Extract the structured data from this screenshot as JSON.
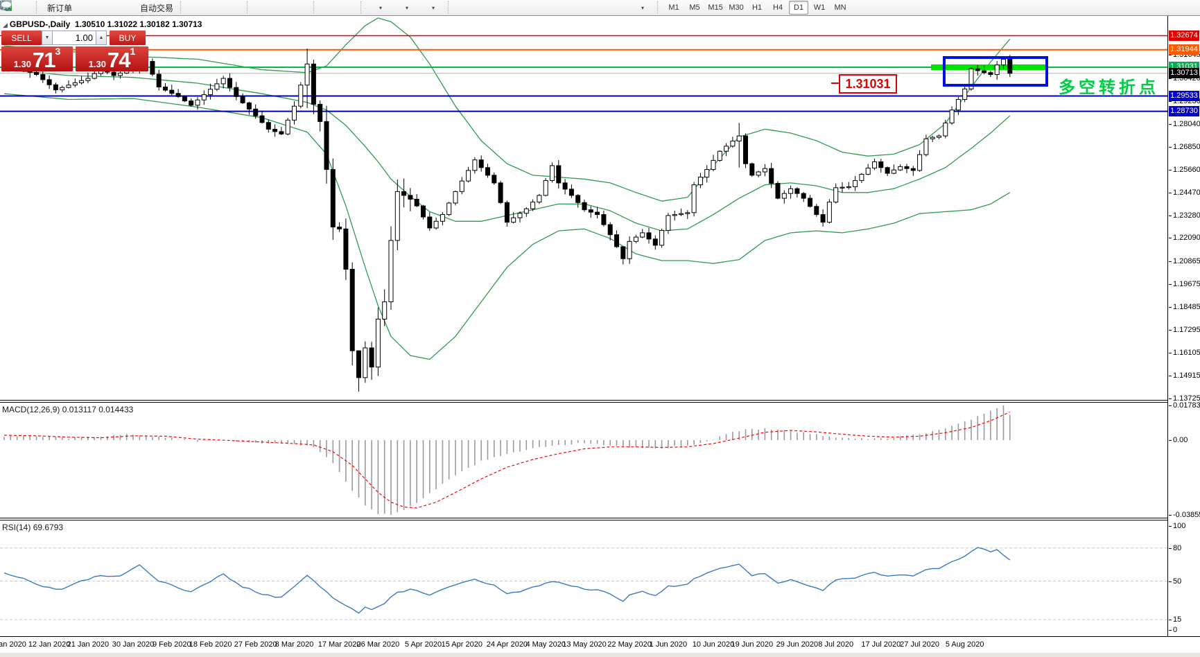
{
  "toolbar": {
    "new_order_label": "新订单",
    "autotrading_label": "自动交易",
    "timeframes": [
      "M1",
      "M5",
      "M15",
      "M30",
      "H1",
      "H4",
      "D1",
      "W1",
      "MN"
    ],
    "active_timeframe": "D1",
    "icons": {
      "chart-window": "bordered-window-shape",
      "market-watch": "window-with-magnifier",
      "new-order": "document-with-green-plus",
      "metaeditor": "gold-diamond",
      "navigator": "blue-panel",
      "signal": "green-antenna-circle",
      "autotrading": "gold-badge-red-dot",
      "bar-chart": "ohlc-bars",
      "candle-chart": "candlestick",
      "line-chart": "zigzag-line",
      "zoom-in": "magnifier-plus",
      "zoom-out": "magnifier-minus",
      "tile-windows": "green-blue-squares",
      "auto-scroll": "axis-green-play",
      "chart-shift": "axis-red-arrow",
      "indicators": "chart-green-plus-dropdown",
      "periods": "blue-clock-dropdown",
      "templates": "chart-lines-dropdown",
      "cursor": "arrow-pointer",
      "crosshair": "thin-cross",
      "vertical-line": "|",
      "horizontal-line": "—",
      "trendline": "/",
      "channel": "hatched-E",
      "fibonacci": "dotted-F",
      "text": "A",
      "text-label": "dashed-T",
      "arrows": "arrow-shapes-dropdown",
      "search": "blue-magnifier",
      "chat": "speech-bubble"
    }
  },
  "chart": {
    "title": "GBPUSD-,Daily",
    "ohlc": "1.30510 1.31022 1.30182 1.30713"
  },
  "one_click": {
    "sell_label": "SELL",
    "buy_label": "BUY",
    "volume": "1.00",
    "sell_price": {
      "prefix": "1.30",
      "pips": "71",
      "pt": "3"
    },
    "buy_price": {
      "prefix": "1.30",
      "pips": "74",
      "pt": "1"
    }
  },
  "annotations": {
    "level_label": "1.31031",
    "note": "多空转折点",
    "highlight_bar_color": "#00e200",
    "box_color": "#0010dd"
  },
  "macd_panel": {
    "name": "MACD(12,26,9)",
    "value1": "0.013117",
    "value2": "0.014433",
    "axis": [
      [
        0.017833,
        "0.017833"
      ],
      [
        0,
        "0.00"
      ],
      [
        -0.038559,
        "-0.038559"
      ]
    ]
  },
  "rsi_panel": {
    "name": "RSI(14)",
    "value": "69.6793",
    "axis": [
      [
        100,
        "100"
      ],
      [
        80,
        "80"
      ],
      [
        50,
        "50"
      ],
      [
        15,
        "15"
      ],
      [
        0,
        "0"
      ]
    ],
    "dashed_levels": [
      80,
      50,
      15
    ]
  },
  "chart_data": {
    "type": "candlestick",
    "symbol": "GBPUSD",
    "timeframe": "Daily",
    "n_candles": 157,
    "y_axis_ticks": [
      1.31645,
      1.3042,
      1.2923,
      1.2804,
      1.2685,
      1.2566,
      1.2447,
      1.2328,
      1.2209,
      1.20865,
      1.19675,
      1.18485,
      1.17295,
      1.16105,
      1.14915,
      1.13725
    ],
    "price_badges": [
      {
        "price": 1.32674,
        "color": "#e00000"
      },
      {
        "price": 1.31944,
        "color": "#ff5a00"
      },
      {
        "price": 1.31031,
        "color": "#00b050"
      },
      {
        "price": 1.30713,
        "color": "#000000"
      },
      {
        "price": 1.29533,
        "color": "#0000cc"
      },
      {
        "price": 1.2873,
        "color": "#0000cc"
      }
    ],
    "level_lines": [
      {
        "price": 1.32674,
        "color": "#e00000",
        "w": 1.5
      },
      {
        "price": 1.31944,
        "color": "#ff5a00",
        "w": 2
      },
      {
        "price": 1.31031,
        "color": "#00bb44",
        "w": 2
      },
      {
        "price": 1.30713,
        "color": "#b4b4b4",
        "w": 1
      },
      {
        "price": 1.29533,
        "color": "#0000bb",
        "w": 2
      },
      {
        "price": 1.2873,
        "color": "#0000bb",
        "w": 2
      }
    ],
    "x_labels": [
      {
        "i": 1,
        "t": "Jan 2020"
      },
      {
        "i": 7,
        "t": "12 Jan 2020"
      },
      {
        "i": 13,
        "t": "21 Jan 2020"
      },
      {
        "i": 20,
        "t": "30 Jan 2020"
      },
      {
        "i": 26,
        "t": "9 Feb 2020"
      },
      {
        "i": 32,
        "t": "18 Feb 2020"
      },
      {
        "i": 39,
        "t": "27 Feb 2020"
      },
      {
        "i": 45,
        "t": "8 Mar 2020"
      },
      {
        "i": 52,
        "t": "17 Mar 2020"
      },
      {
        "i": 58,
        "t": "26 Mar 2020"
      },
      {
        "i": 65,
        "t": "5 Apr 2020"
      },
      {
        "i": 71,
        "t": "15 Apr 2020"
      },
      {
        "i": 78,
        "t": "24 Apr 2020"
      },
      {
        "i": 84,
        "t": "4 May 2020"
      },
      {
        "i": 90,
        "t": "13 May 2020"
      },
      {
        "i": 97,
        "t": "22 May 2020"
      },
      {
        "i": 103,
        "t": "1 Jun 2020"
      },
      {
        "i": 110,
        "t": "10 Jun 2020"
      },
      {
        "i": 116,
        "t": "19 Jun 2020"
      },
      {
        "i": 123,
        "t": "29 Jun 2020"
      },
      {
        "i": 129,
        "t": "8 Jul 2020"
      },
      {
        "i": 136,
        "t": "17 Jul 2020"
      },
      {
        "i": 142,
        "t": "27 Jul 2020"
      },
      {
        "i": 149,
        "t": "5 Aug 2020"
      }
    ],
    "close_anchors": [
      [
        0,
        1.313
      ],
      [
        2,
        1.31
      ],
      [
        5,
        1.3065
      ],
      [
        8,
        1.2985
      ],
      [
        10,
        1.301
      ],
      [
        13,
        1.3045
      ],
      [
        15,
        1.3095
      ],
      [
        17,
        1.306
      ],
      [
        19,
        1.3085
      ],
      [
        21,
        1.32
      ],
      [
        24,
        1.3
      ],
      [
        27,
        1.295
      ],
      [
        29,
        1.2905
      ],
      [
        31,
        1.296
      ],
      [
        34,
        1.3045
      ],
      [
        36,
        1.295
      ],
      [
        38,
        1.2885
      ],
      [
        41,
        1.278
      ],
      [
        43,
        1.2755
      ],
      [
        45,
        1.29
      ],
      [
        47,
        1.312
      ],
      [
        48,
        1.291
      ],
      [
        49,
        1.282
      ],
      [
        50,
        1.257
      ],
      [
        51,
        1.227
      ],
      [
        52,
        1.226
      ],
      [
        53,
        1.205
      ],
      [
        54,
        1.1625
      ],
      [
        55,
        1.1485
      ],
      [
        56,
        1.164
      ],
      [
        57,
        1.154
      ],
      [
        58,
        1.179
      ],
      [
        59,
        1.188
      ],
      [
        60,
        1.22
      ],
      [
        61,
        1.2455
      ],
      [
        63,
        1.2415
      ],
      [
        64,
        1.238
      ],
      [
        66,
        1.2265
      ],
      [
        68,
        1.2335
      ],
      [
        70,
        1.2455
      ],
      [
        73,
        1.262
      ],
      [
        76,
        1.25
      ],
      [
        78,
        1.2295
      ],
      [
        81,
        1.2365
      ],
      [
        83,
        1.2435
      ],
      [
        85,
        1.259
      ],
      [
        86,
        1.25
      ],
      [
        88,
        1.2435
      ],
      [
        90,
        1.236
      ],
      [
        92,
        1.2335
      ],
      [
        94,
        1.223
      ],
      [
        96,
        1.2105
      ],
      [
        97,
        1.2195
      ],
      [
        99,
        1.224
      ],
      [
        101,
        1.2175
      ],
      [
        103,
        1.233
      ],
      [
        106,
        1.2345
      ],
      [
        107,
        1.249
      ],
      [
        109,
        1.257
      ],
      [
        111,
        1.2665
      ],
      [
        114,
        1.2745
      ],
      [
        115,
        1.26
      ],
      [
        116,
        1.254
      ],
      [
        118,
        1.2575
      ],
      [
        120,
        1.242
      ],
      [
        122,
        1.247
      ],
      [
        124,
        1.242
      ],
      [
        126,
        1.2335
      ],
      [
        127,
        1.2295
      ],
      [
        128,
        1.24
      ],
      [
        129,
        1.2475
      ],
      [
        131,
        1.248
      ],
      [
        133,
        1.2545
      ],
      [
        135,
        1.261
      ],
      [
        137,
        1.255
      ],
      [
        139,
        1.2585
      ],
      [
        141,
        1.2565
      ],
      [
        143,
        1.273
      ],
      [
        145,
        1.2745
      ],
      [
        147,
        1.288
      ],
      [
        148,
        1.2935
      ],
      [
        149,
        1.299
      ],
      [
        150,
        1.3095
      ],
      [
        151,
        1.3085
      ],
      [
        152,
        1.3075
      ],
      [
        153,
        1.3065
      ],
      [
        154,
        1.3115
      ],
      [
        155,
        1.3145
      ],
      [
        156,
        1.30713
      ]
    ],
    "wick_overrides": {
      "21": [
        1.321,
        1.307
      ],
      "47": [
        1.32,
        1.289
      ],
      "55": [
        1.156,
        1.1412
      ],
      "96": [
        1.216,
        1.2075
      ],
      "114": [
        1.2813,
        1.258
      ]
    },
    "bollinger_anchors": [
      [
        0,
        1.3215,
        1.309,
        1.2965
      ],
      [
        10,
        1.3185,
        1.306,
        1.2935
      ],
      [
        20,
        1.316,
        1.305,
        1.294
      ],
      [
        30,
        1.3145,
        1.302,
        1.2895
      ],
      [
        40,
        1.309,
        1.2965,
        1.284
      ],
      [
        47,
        1.3075,
        1.292,
        1.2765
      ],
      [
        50,
        1.311,
        1.288,
        1.265
      ],
      [
        53,
        1.322,
        1.28,
        1.238
      ],
      [
        56,
        1.332,
        1.269,
        1.206
      ],
      [
        58,
        1.336,
        1.261,
        1.186
      ],
      [
        60,
        1.334,
        1.252,
        1.17
      ],
      [
        63,
        1.326,
        1.243,
        1.16
      ],
      [
        66,
        1.312,
        1.235,
        1.158
      ],
      [
        70,
        1.29,
        1.23,
        1.17
      ],
      [
        74,
        1.272,
        1.23,
        1.188
      ],
      [
        78,
        1.26,
        1.233,
        1.206
      ],
      [
        82,
        1.254,
        1.236,
        1.218
      ],
      [
        86,
        1.253,
        1.239,
        1.225
      ],
      [
        90,
        1.252,
        1.239,
        1.226
      ],
      [
        94,
        1.25,
        1.2355,
        1.221
      ],
      [
        98,
        1.245,
        1.229,
        1.213
      ],
      [
        102,
        1.2405,
        1.225,
        1.2095
      ],
      [
        106,
        1.2425,
        1.226,
        1.2095
      ],
      [
        110,
        1.259,
        1.2335,
        1.208
      ],
      [
        114,
        1.274,
        1.242,
        1.21
      ],
      [
        118,
        1.278,
        1.249,
        1.22
      ],
      [
        122,
        1.276,
        1.25,
        1.224
      ],
      [
        126,
        1.272,
        1.2485,
        1.225
      ],
      [
        130,
        1.266,
        1.245,
        1.224
      ],
      [
        134,
        1.264,
        1.245,
        1.226
      ],
      [
        138,
        1.265,
        1.247,
        1.229
      ],
      [
        142,
        1.27,
        1.252,
        1.234
      ],
      [
        146,
        1.281,
        1.258,
        1.235
      ],
      [
        150,
        1.3,
        1.268,
        1.236
      ],
      [
        153,
        1.313,
        1.276,
        1.239
      ],
      [
        156,
        1.325,
        1.285,
        1.245
      ]
    ],
    "macd_anchors": [
      [
        0,
        0.002,
        0.0025
      ],
      [
        5,
        0.0022,
        0.0022
      ],
      [
        10,
        0.001,
        0.0015
      ],
      [
        15,
        0.0018,
        0.0012
      ],
      [
        20,
        0.003,
        0.0022
      ],
      [
        25,
        0.0012,
        0.002
      ],
      [
        30,
        -0.0005,
        0.0005
      ],
      [
        35,
        0.0,
        -0.0002
      ],
      [
        40,
        -0.0018,
        -0.001
      ],
      [
        45,
        -0.002,
        -0.0018
      ],
      [
        48,
        -0.0035,
        -0.0025
      ],
      [
        51,
        -0.012,
        -0.006
      ],
      [
        54,
        -0.026,
        -0.013
      ],
      [
        56,
        -0.034,
        -0.02
      ],
      [
        58,
        -0.038,
        -0.027
      ],
      [
        60,
        -0.0386,
        -0.032
      ],
      [
        62,
        -0.036,
        -0.0345
      ],
      [
        64,
        -0.032,
        -0.035
      ],
      [
        67,
        -0.025,
        -0.032
      ],
      [
        70,
        -0.018,
        -0.027
      ],
      [
        74,
        -0.011,
        -0.02
      ],
      [
        78,
        -0.007,
        -0.014
      ],
      [
        82,
        -0.0045,
        -0.01
      ],
      [
        86,
        -0.0025,
        -0.007
      ],
      [
        90,
        -0.0015,
        -0.0045
      ],
      [
        94,
        -0.0025,
        -0.0035
      ],
      [
        98,
        -0.004,
        -0.0035
      ],
      [
        102,
        -0.004,
        -0.0038
      ],
      [
        106,
        -0.0028,
        -0.0035
      ],
      [
        110,
        0.0005,
        -0.0018
      ],
      [
        114,
        0.005,
        0.001
      ],
      [
        118,
        0.006,
        0.004
      ],
      [
        122,
        0.0045,
        0.005
      ],
      [
        126,
        0.0028,
        0.0042
      ],
      [
        130,
        0.001,
        0.003
      ],
      [
        134,
        0.0008,
        0.002
      ],
      [
        138,
        0.0012,
        0.0015
      ],
      [
        142,
        0.003,
        0.002
      ],
      [
        146,
        0.006,
        0.0038
      ],
      [
        150,
        0.0105,
        0.0065
      ],
      [
        153,
        0.0155,
        0.01
      ],
      [
        155,
        0.0178,
        0.013
      ],
      [
        156,
        0.0131,
        0.0144
      ]
    ],
    "rsi_anchors": [
      [
        0,
        58
      ],
      [
        3,
        52
      ],
      [
        6,
        45
      ],
      [
        9,
        42
      ],
      [
        12,
        50
      ],
      [
        15,
        55
      ],
      [
        18,
        54
      ],
      [
        21,
        65
      ],
      [
        24,
        50
      ],
      [
        27,
        44
      ],
      [
        29,
        40
      ],
      [
        31,
        47
      ],
      [
        34,
        56
      ],
      [
        37,
        45
      ],
      [
        40,
        38
      ],
      [
        43,
        35
      ],
      [
        46,
        50
      ],
      [
        47,
        55
      ],
      [
        49,
        45
      ],
      [
        51,
        35
      ],
      [
        53,
        28
      ],
      [
        55,
        21
      ],
      [
        56,
        27
      ],
      [
        57,
        24
      ],
      [
        59,
        30
      ],
      [
        61,
        40
      ],
      [
        63,
        42
      ],
      [
        66,
        38
      ],
      [
        68,
        42
      ],
      [
        71,
        48
      ],
      [
        73,
        52
      ],
      [
        76,
        46
      ],
      [
        78,
        38
      ],
      [
        81,
        42
      ],
      [
        83,
        46
      ],
      [
        85,
        50
      ],
      [
        88,
        46
      ],
      [
        90,
        43
      ],
      [
        92,
        42
      ],
      [
        94,
        38
      ],
      [
        96,
        32
      ],
      [
        97,
        38
      ],
      [
        99,
        41
      ],
      [
        101,
        37
      ],
      [
        103,
        45
      ],
      [
        106,
        47
      ],
      [
        107,
        53
      ],
      [
        109,
        57
      ],
      [
        111,
        61
      ],
      [
        114,
        65
      ],
      [
        116,
        55
      ],
      [
        118,
        57
      ],
      [
        120,
        48
      ],
      [
        122,
        51
      ],
      [
        124,
        48
      ],
      [
        126,
        44
      ],
      [
        127,
        42
      ],
      [
        128,
        47
      ],
      [
        129,
        51
      ],
      [
        131,
        52
      ],
      [
        133,
        55
      ],
      [
        135,
        58
      ],
      [
        137,
        54
      ],
      [
        139,
        56
      ],
      [
        141,
        54
      ],
      [
        143,
        61
      ],
      [
        145,
        62
      ],
      [
        147,
        68
      ],
      [
        149,
        72
      ],
      [
        151,
        80
      ],
      [
        153,
        77
      ],
      [
        154,
        79
      ],
      [
        155,
        74
      ],
      [
        156,
        69.68
      ]
    ],
    "colors": {
      "bollinger": "#2e9b4e",
      "macd_hist": "#9a9a9a",
      "macd_signal": "#ff0000",
      "rsi_line": "#3a78c3",
      "candle_up": "#ffffff",
      "candle_down": "#000000"
    }
  }
}
